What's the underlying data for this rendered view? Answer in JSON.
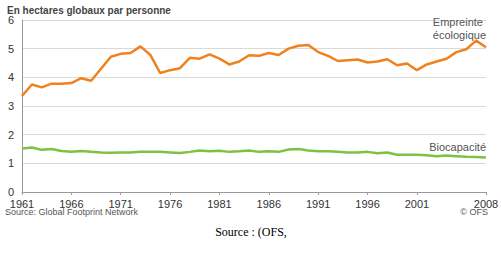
{
  "chart_data": {
    "type": "line",
    "y_label": "En hectares globaux par personne",
    "annotations": [
      "Source: Global Footprint Network",
      "© OFS",
      "Source : (OFS,"
    ],
    "x": [
      1961,
      1962,
      1963,
      1964,
      1965,
      1966,
      1967,
      1968,
      1969,
      1970,
      1971,
      1972,
      1973,
      1974,
      1975,
      1976,
      1977,
      1978,
      1979,
      1980,
      1981,
      1982,
      1983,
      1984,
      1985,
      1986,
      1987,
      1988,
      1989,
      1990,
      1991,
      1992,
      1993,
      1994,
      1995,
      1996,
      1997,
      1998,
      1999,
      2000,
      2001,
      2002,
      2003,
      2004,
      2005,
      2006,
      2007,
      2008
    ],
    "series": [
      {
        "name": "Empreinte écologique",
        "color": "#f0821e",
        "values": [
          3.35,
          3.75,
          3.65,
          3.78,
          3.78,
          3.8,
          3.97,
          3.88,
          4.3,
          4.72,
          4.82,
          4.85,
          5.08,
          4.78,
          4.15,
          4.25,
          4.32,
          4.68,
          4.65,
          4.8,
          4.65,
          4.45,
          4.55,
          4.77,
          4.75,
          4.85,
          4.78,
          5.0,
          5.1,
          5.13,
          4.88,
          4.75,
          4.57,
          4.6,
          4.62,
          4.52,
          4.55,
          4.63,
          4.42,
          4.48,
          4.25,
          4.45,
          4.55,
          4.65,
          4.88,
          4.98,
          5.28,
          5.05
        ]
      },
      {
        "name": "Biocapacité",
        "color": "#7dc242",
        "values": [
          1.52,
          1.55,
          1.47,
          1.5,
          1.43,
          1.4,
          1.43,
          1.4,
          1.38,
          1.37,
          1.38,
          1.38,
          1.4,
          1.4,
          1.4,
          1.38,
          1.36,
          1.4,
          1.45,
          1.42,
          1.44,
          1.4,
          1.42,
          1.45,
          1.4,
          1.42,
          1.4,
          1.48,
          1.5,
          1.45,
          1.42,
          1.42,
          1.4,
          1.38,
          1.38,
          1.4,
          1.35,
          1.38,
          1.3,
          1.3,
          1.3,
          1.28,
          1.25,
          1.27,
          1.25,
          1.23,
          1.22,
          1.2
        ]
      }
    ],
    "xlim": [
      1961,
      2008
    ],
    "xticks": [
      1961,
      1966,
      1971,
      1976,
      1981,
      1986,
      1991,
      1996,
      2001,
      2008
    ],
    "ylim": [
      0,
      6
    ],
    "yticks": [
      0,
      1,
      2,
      3,
      4,
      5,
      6
    ],
    "grid": true
  }
}
